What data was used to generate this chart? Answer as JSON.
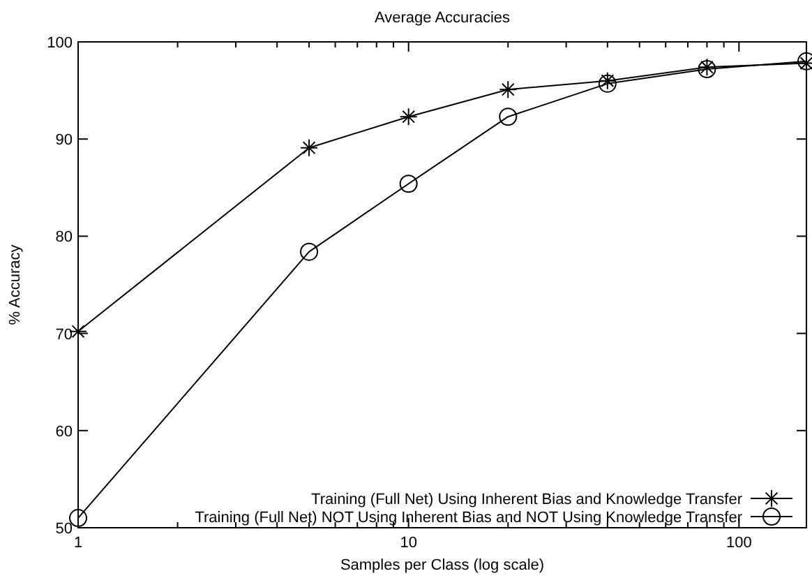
{
  "chart_data": {
    "type": "line",
    "title": "Average Accuracies",
    "xlabel": "Samples per Class (log scale)",
    "ylabel": "% Accuracy",
    "log": "x",
    "xlim": [
      1,
      160
    ],
    "ylim": [
      50,
      100
    ],
    "xticks": [
      1,
      {
        "value": 2,
        "label": null
      },
      {
        "value": 3,
        "label": null
      },
      {
        "value": 4,
        "label": null
      },
      {
        "value": 5,
        "label": null
      },
      {
        "value": 6,
        "label": null
      },
      {
        "value": 7,
        "label": null
      },
      {
        "value": 8,
        "label": null
      },
      {
        "value": 9,
        "label": null
      },
      10,
      {
        "value": 20,
        "label": null
      },
      {
        "value": 30,
        "label": null
      },
      {
        "value": 40,
        "label": null
      },
      {
        "value": 50,
        "label": null
      },
      {
        "value": 60,
        "label": null
      },
      {
        "value": 70,
        "label": null
      },
      {
        "value": 80,
        "label": null
      },
      {
        "value": 90,
        "label": null
      },
      100
    ],
    "yticks": [
      50,
      60,
      70,
      80,
      90,
      100
    ],
    "grid": false,
    "legend": "bottom right",
    "x": [
      1,
      5,
      10,
      20,
      40,
      80,
      160
    ],
    "series": [
      {
        "name": "Training (Full Net) Using Inherent Bias and Knowledge Transfer",
        "color": "#000000",
        "marker": "cross",
        "values": [
          70.2,
          89.1,
          92.3,
          95.1,
          96.0,
          97.4,
          97.8
        ]
      },
      {
        "name": "Training (Full Net) NOT Using Inherent Bias and NOT Using Knowledge Transfer",
        "color": "#000000",
        "marker": "circle",
        "values": [
          51,
          78.4,
          85.4,
          92.3,
          95.7,
          97.2,
          98.0
        ]
      }
    ]
  }
}
